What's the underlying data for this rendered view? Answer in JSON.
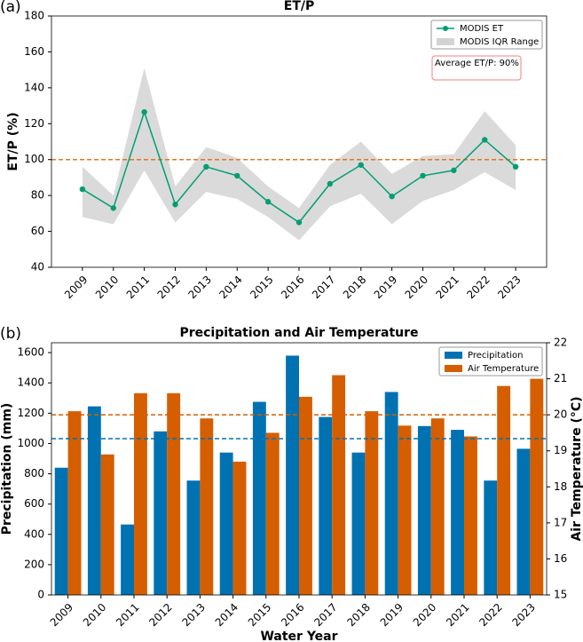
{
  "chart_data": [
    {
      "type": "line",
      "panel_label": "(a)",
      "title": "ET/P",
      "y_label": "ET/P (%)",
      "categories": [
        "2009",
        "2010",
        "2011",
        "2012",
        "2013",
        "2014",
        "2015",
        "2016",
        "2017",
        "2018",
        "2019",
        "2020",
        "2021",
        "2022",
        "2023"
      ],
      "series": [
        {
          "name": "MODIS ET",
          "color": "#009e73",
          "values": [
            83.5,
            73,
            126.5,
            75,
            96,
            91,
            76.5,
            65,
            86.5,
            97,
            79.5,
            91,
            94,
            111,
            96
          ]
        }
      ],
      "iqr": {
        "name": "MODIS IQR Range",
        "color": "#d3d3d3",
        "low": [
          68,
          64,
          94,
          65,
          82,
          78,
          68,
          55,
          74,
          81,
          64,
          77,
          83,
          93,
          83
        ],
        "high": [
          96,
          80,
          151,
          85,
          107,
          101,
          85,
          73,
          97,
          110,
          92,
          102,
          103,
          127,
          108
        ]
      },
      "reference_lines": [
        {
          "value": 100,
          "color": "#e8751a"
        }
      ],
      "annotation": "Average ET/P: 90%",
      "ylim": [
        40,
        180
      ],
      "yticks": [
        40,
        60,
        80,
        100,
        120,
        140,
        160,
        180
      ],
      "legend": "upper right"
    },
    {
      "type": "bar",
      "panel_label": "(b)",
      "title": "Precipitation and Air Temperature",
      "x_label": "Water Year",
      "y_label": "Precipitation (mm)",
      "y2_label": "Air Temperature (°C)",
      "categories": [
        "2009",
        "2010",
        "2011",
        "2012",
        "2013",
        "2014",
        "2015",
        "2016",
        "2017",
        "2018",
        "2019",
        "2020",
        "2021",
        "2022",
        "2023"
      ],
      "series": [
        {
          "name": "Precipitation",
          "color": "#0072b2",
          "values": [
            840,
            1245,
            465,
            1080,
            755,
            940,
            1275,
            1580,
            1175,
            940,
            1340,
            1115,
            1090,
            755,
            965
          ]
        },
        {
          "name": "Air Temperature",
          "color": "#d55e00",
          "axis": "y2",
          "values": [
            20.1,
            18.9,
            20.6,
            20.6,
            19.9,
            18.7,
            19.5,
            20.5,
            21.1,
            20.1,
            19.7,
            19.9,
            19.4,
            20.8,
            21.0
          ]
        }
      ],
      "reference_lines": [
        {
          "value": 1032,
          "color": "#0072b2"
        },
        {
          "value": 20.0,
          "color": "#d55e00",
          "axis": "y2"
        }
      ],
      "ylim": [
        0,
        1665
      ],
      "yticks": [
        0,
        200,
        400,
        600,
        800,
        1000,
        1200,
        1400,
        1600
      ],
      "y2lim": [
        15,
        22
      ],
      "y2ticks": [
        15,
        16,
        17,
        18,
        19,
        20,
        21,
        22
      ],
      "legend": "upper right"
    }
  ]
}
